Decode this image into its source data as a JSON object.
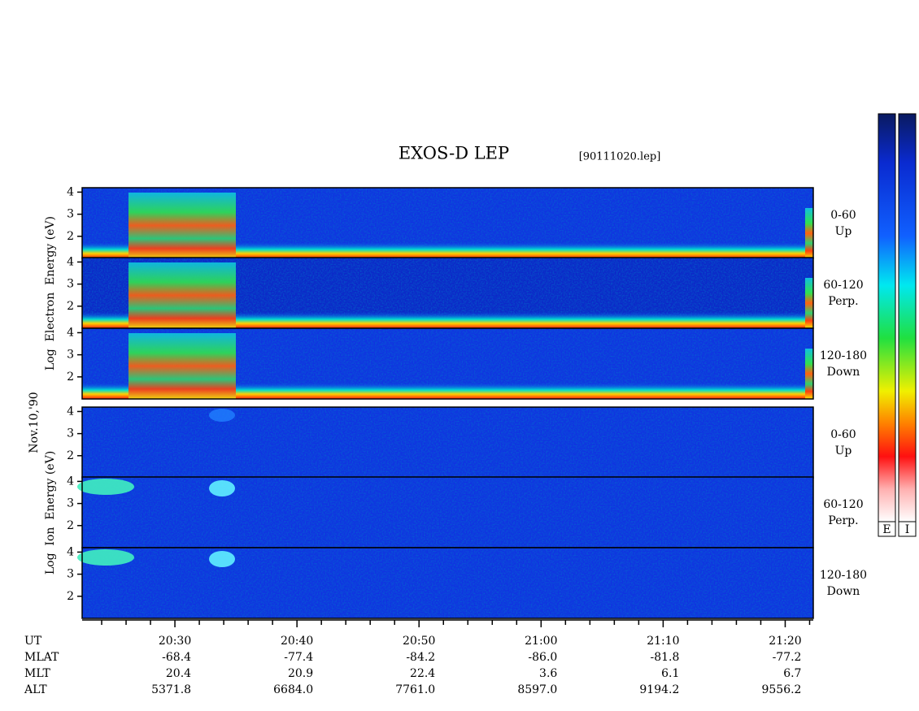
{
  "chart_data": {
    "type": "spectrogram",
    "title": "EXOS-D LEP",
    "subtitle": "[90111020.lep]",
    "date_label": "Nov.10,'90",
    "xlim": [
      1222.4,
      1282.3
    ],
    "xticks": [
      {
        "value": 1230,
        "label": "20:30"
      },
      {
        "value": 1240,
        "label": "20:40"
      },
      {
        "value": 1250,
        "label": "20:50"
      },
      {
        "value": 1260,
        "label": "21:00"
      },
      {
        "value": 1270,
        "label": "21:10"
      },
      {
        "value": 1280,
        "label": "21:20"
      }
    ],
    "minor_xticks": [
      1224,
      1226,
      1228,
      1232,
      1234,
      1236,
      1238,
      1242,
      1244,
      1246,
      1248,
      1252,
      1254,
      1256,
      1258,
      1262,
      1264,
      1266,
      1268,
      1272,
      1274,
      1276,
      1278,
      1282
    ],
    "ylim": [
      1.0,
      4.2
    ],
    "yticks": [
      2,
      3,
      4
    ],
    "groups": [
      {
        "ylabel": "Log  Electron  Energy (eV)",
        "panels": [
          {
            "angle": "0-60",
            "direction": "Up"
          },
          {
            "angle": "60-120",
            "direction": "Perp."
          },
          {
            "angle": "120-180",
            "direction": "Down"
          }
        ]
      },
      {
        "ylabel": "Log  Ion  Energy (eV)",
        "panels": [
          {
            "angle": "0-60",
            "direction": "Up"
          },
          {
            "angle": "60-120",
            "direction": "Perp."
          },
          {
            "angle": "120-180",
            "direction": "Down"
          }
        ]
      }
    ],
    "ephemeris": {
      "time_label": "UT",
      "rows": [
        {
          "label": "MLAT",
          "values": [
            "-68.4",
            "-77.4",
            "-84.2",
            "-86.0",
            "-81.8",
            "-77.2"
          ]
        },
        {
          "label": "MLT",
          "values": [
            "20.4",
            "20.9",
            "22.4",
            "3.6",
            "6.1",
            "6.7"
          ]
        },
        {
          "label": "ALT",
          "values": [
            "5371.8",
            "6684.0",
            "7761.0",
            "8597.0",
            "9194.2",
            "9556.2"
          ]
        }
      ]
    },
    "colorbars": [
      "E",
      "I"
    ]
  }
}
